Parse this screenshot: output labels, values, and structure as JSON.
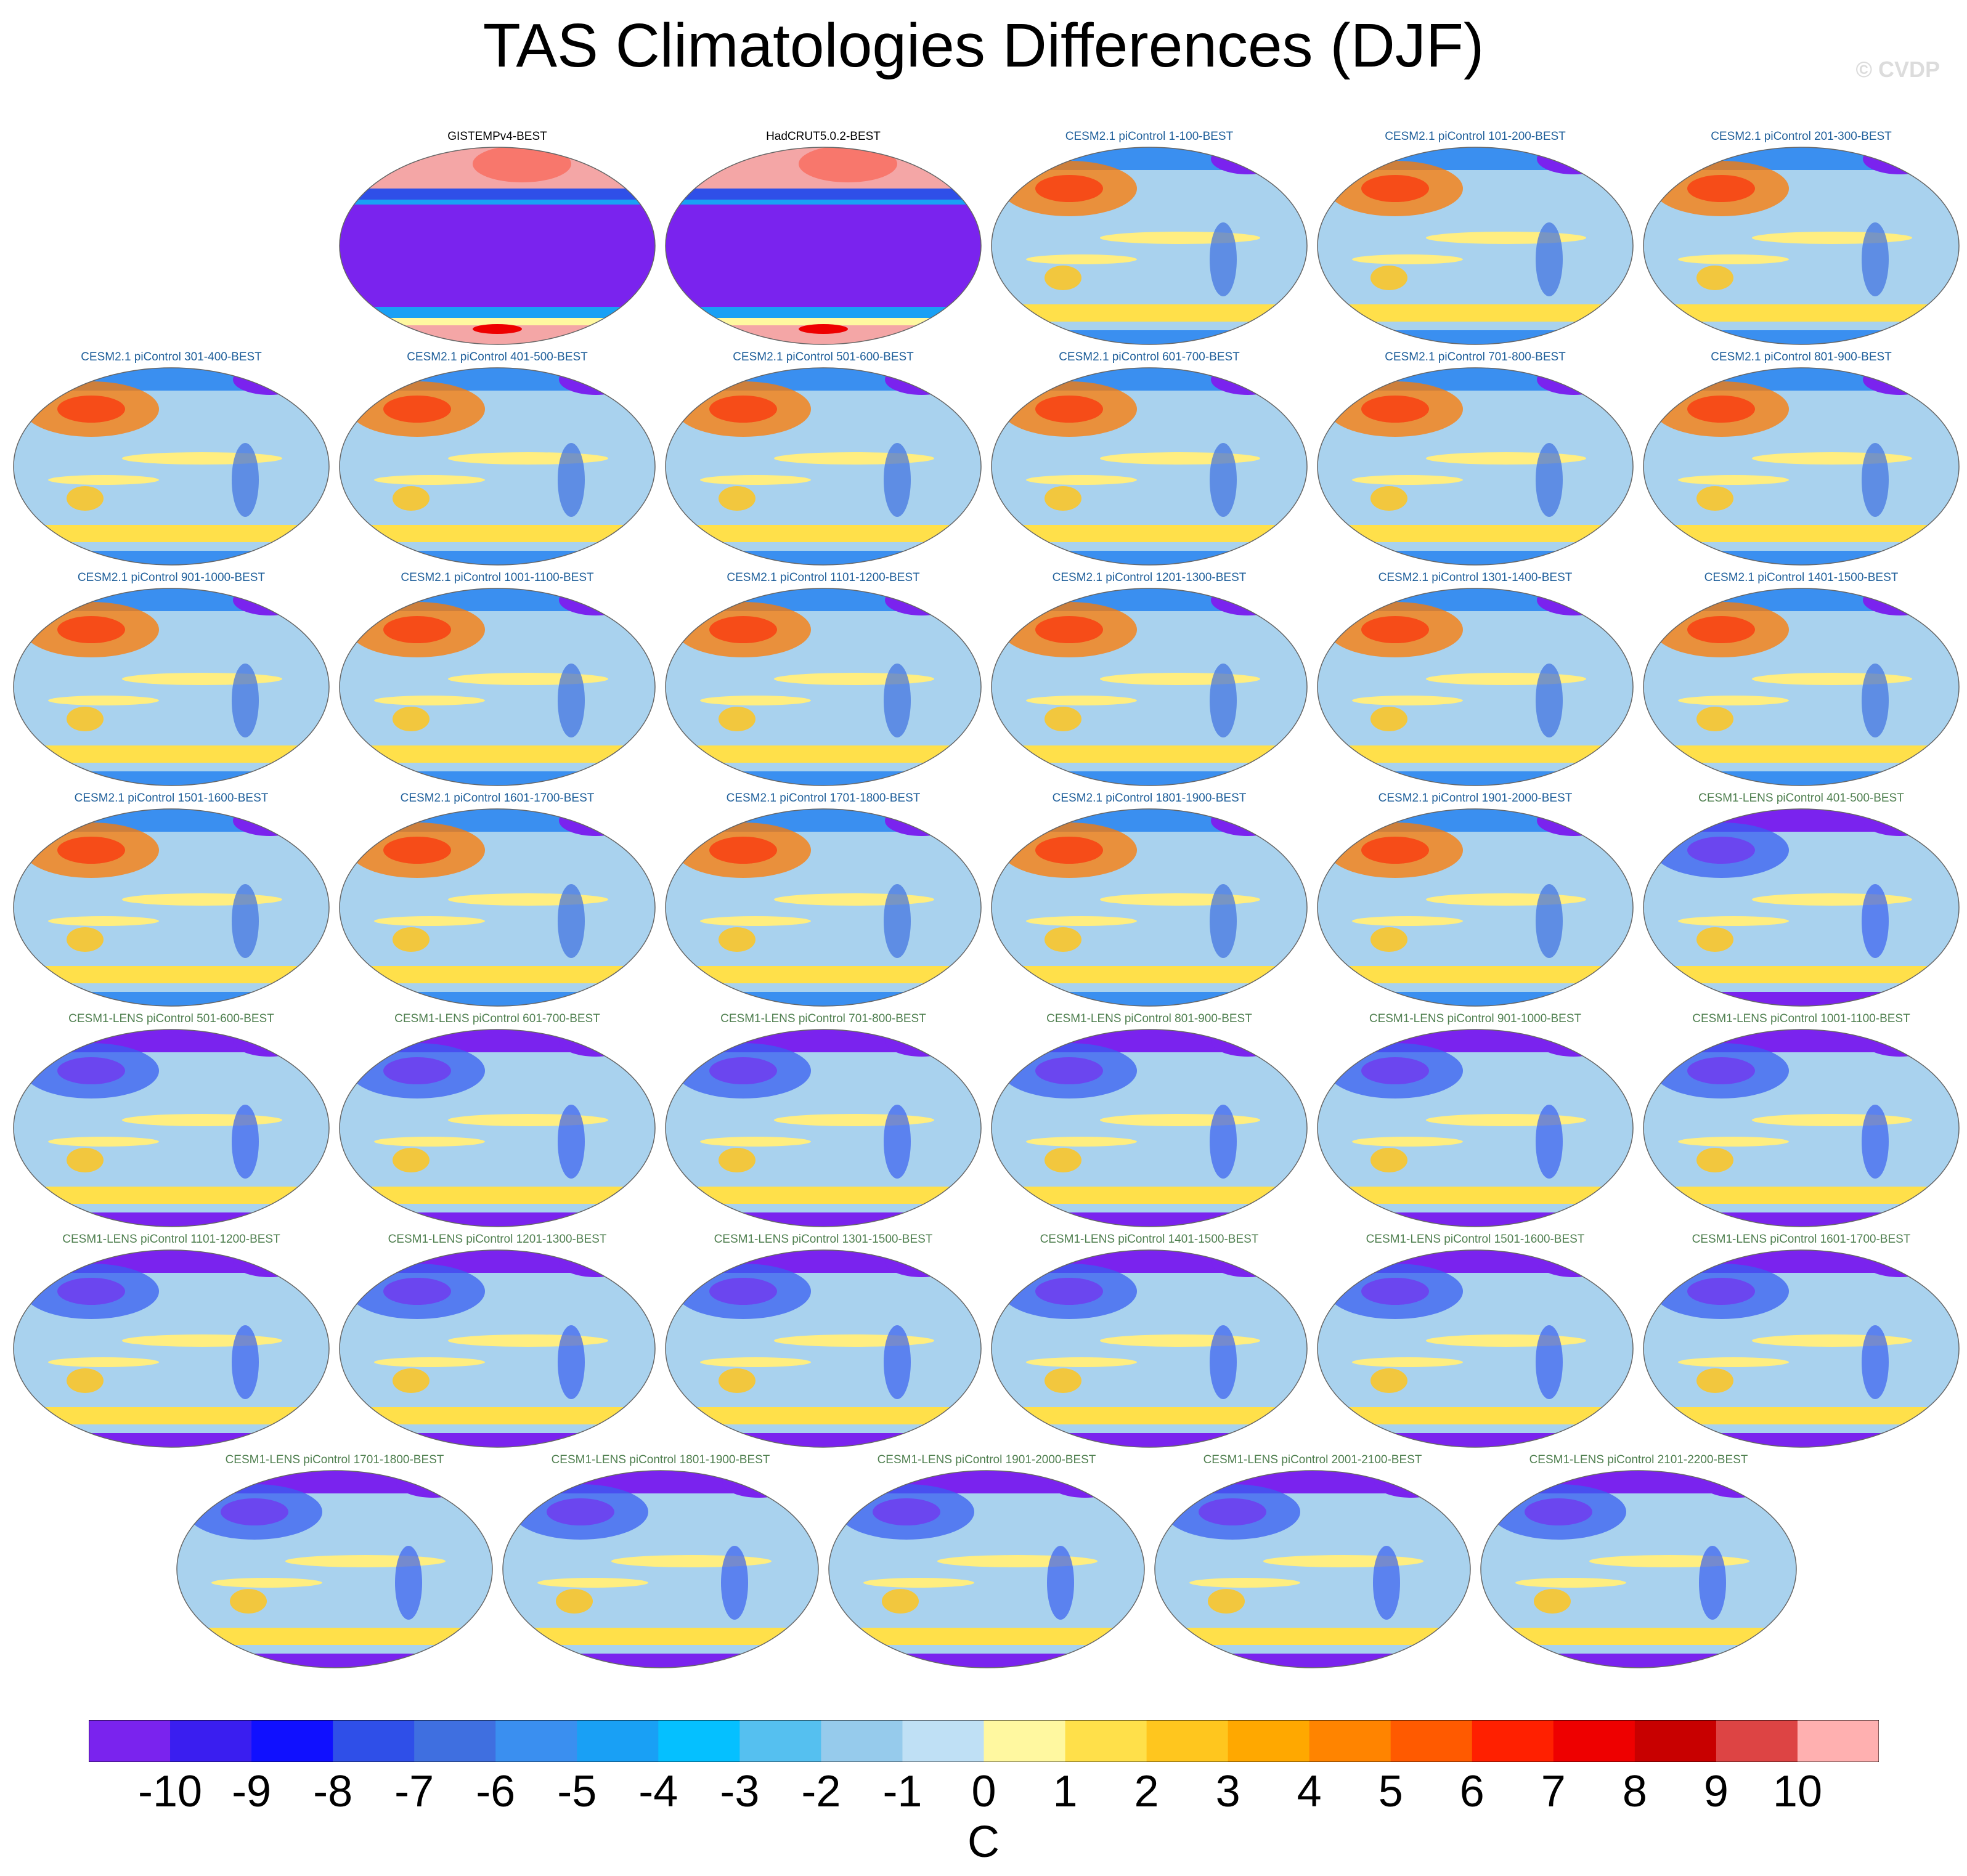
{
  "title": "TAS Climatologies Differences (DJF)",
  "watermark": "© CVDP",
  "colors": {
    "obs_title": "#000000",
    "cesm2_title": "#1f5f9a",
    "lens_title": "#4f7f4f",
    "obs_land": "#f4a6a6",
    "obs_ocean": "#7a23ee",
    "model_ocean": "#a9d2ee",
    "model_warm": "#ffee80",
    "model_hot": "#ff7a00",
    "model_cold": "#3a5ff0",
    "model_polar": "#7a23ee"
  },
  "panels": [
    {
      "title": "GISTEMPv4-BEST",
      "group": "obs"
    },
    {
      "title": "HadCRUT5.0.2-BEST",
      "group": "obs"
    },
    {
      "title": "CESM2.1 piControl 1-100-BEST",
      "group": "cesm2"
    },
    {
      "title": "CESM2.1 piControl 101-200-BEST",
      "group": "cesm2"
    },
    {
      "title": "CESM2.1 piControl 201-300-BEST",
      "group": "cesm2"
    },
    {
      "title": "CESM2.1 piControl 301-400-BEST",
      "group": "cesm2"
    },
    {
      "title": "CESM2.1 piControl 401-500-BEST",
      "group": "cesm2"
    },
    {
      "title": "CESM2.1 piControl 501-600-BEST",
      "group": "cesm2"
    },
    {
      "title": "CESM2.1 piControl 601-700-BEST",
      "group": "cesm2"
    },
    {
      "title": "CESM2.1 piControl 701-800-BEST",
      "group": "cesm2"
    },
    {
      "title": "CESM2.1 piControl 801-900-BEST",
      "group": "cesm2"
    },
    {
      "title": "CESM2.1 piControl 901-1000-BEST",
      "group": "cesm2"
    },
    {
      "title": "CESM2.1 piControl 1001-1100-BEST",
      "group": "cesm2"
    },
    {
      "title": "CESM2.1 piControl 1101-1200-BEST",
      "group": "cesm2"
    },
    {
      "title": "CESM2.1 piControl 1201-1300-BEST",
      "group": "cesm2"
    },
    {
      "title": "CESM2.1 piControl 1301-1400-BEST",
      "group": "cesm2"
    },
    {
      "title": "CESM2.1 piControl 1401-1500-BEST",
      "group": "cesm2"
    },
    {
      "title": "CESM2.1 piControl 1501-1600-BEST",
      "group": "cesm2"
    },
    {
      "title": "CESM2.1 piControl 1601-1700-BEST",
      "group": "cesm2"
    },
    {
      "title": "CESM2.1 piControl 1701-1800-BEST",
      "group": "cesm2"
    },
    {
      "title": "CESM2.1 piControl 1801-1900-BEST",
      "group": "cesm2"
    },
    {
      "title": "CESM2.1 piControl 1901-2000-BEST",
      "group": "cesm2"
    },
    {
      "title": "CESM1-LENS piControl 401-500-BEST",
      "group": "lens"
    },
    {
      "title": "CESM1-LENS piControl 501-600-BEST",
      "group": "lens"
    },
    {
      "title": "CESM1-LENS piControl 601-700-BEST",
      "group": "lens"
    },
    {
      "title": "CESM1-LENS piControl 701-800-BEST",
      "group": "lens"
    },
    {
      "title": "CESM1-LENS piControl 801-900-BEST",
      "group": "lens"
    },
    {
      "title": "CESM1-LENS piControl 901-1000-BEST",
      "group": "lens"
    },
    {
      "title": "CESM1-LENS piControl 1001-1100-BEST",
      "group": "lens"
    },
    {
      "title": "CESM1-LENS piControl 1101-1200-BEST",
      "group": "lens"
    },
    {
      "title": "CESM1-LENS piControl 1201-1300-BEST",
      "group": "lens"
    },
    {
      "title": "CESM1-LENS piControl 1301-1500-BEST",
      "group": "lens"
    },
    {
      "title": "CESM1-LENS piControl 1401-1500-BEST",
      "group": "lens"
    },
    {
      "title": "CESM1-LENS piControl 1501-1600-BEST",
      "group": "lens"
    },
    {
      "title": "CESM1-LENS piControl 1601-1700-BEST",
      "group": "lens"
    },
    {
      "title": "CESM1-LENS piControl 1701-1800-BEST",
      "group": "lens"
    },
    {
      "title": "CESM1-LENS piControl 1801-1900-BEST",
      "group": "lens"
    },
    {
      "title": "CESM1-LENS piControl 1901-2000-BEST",
      "group": "lens"
    },
    {
      "title": "CESM1-LENS piControl 2001-2100-BEST",
      "group": "lens"
    },
    {
      "title": "CESM1-LENS piControl 2101-2200-BEST",
      "group": "lens"
    }
  ],
  "colorbar": {
    "unit": "C",
    "ticks": [
      "-10",
      "-9",
      "-8",
      "-7",
      "-6",
      "-5",
      "-4",
      "-3",
      "-2",
      "-1",
      "0",
      "1",
      "2",
      "3",
      "4",
      "5",
      "6",
      "7",
      "8",
      "9",
      "10"
    ],
    "colors": [
      "#7a23ee",
      "#3a1ef0",
      "#1010ff",
      "#2f4fe8",
      "#3f6fe0",
      "#3a8ff0",
      "#19a0f5",
      "#05c0ff",
      "#55c0f0",
      "#96cbec",
      "#bfe0f5",
      "#fff8a0",
      "#ffe04a",
      "#ffc61e",
      "#ffa800",
      "#ff8400",
      "#ff5a00",
      "#ff2000",
      "#ee0000",
      "#c80000",
      "#dd4444",
      "#ffb0b0"
    ]
  }
}
